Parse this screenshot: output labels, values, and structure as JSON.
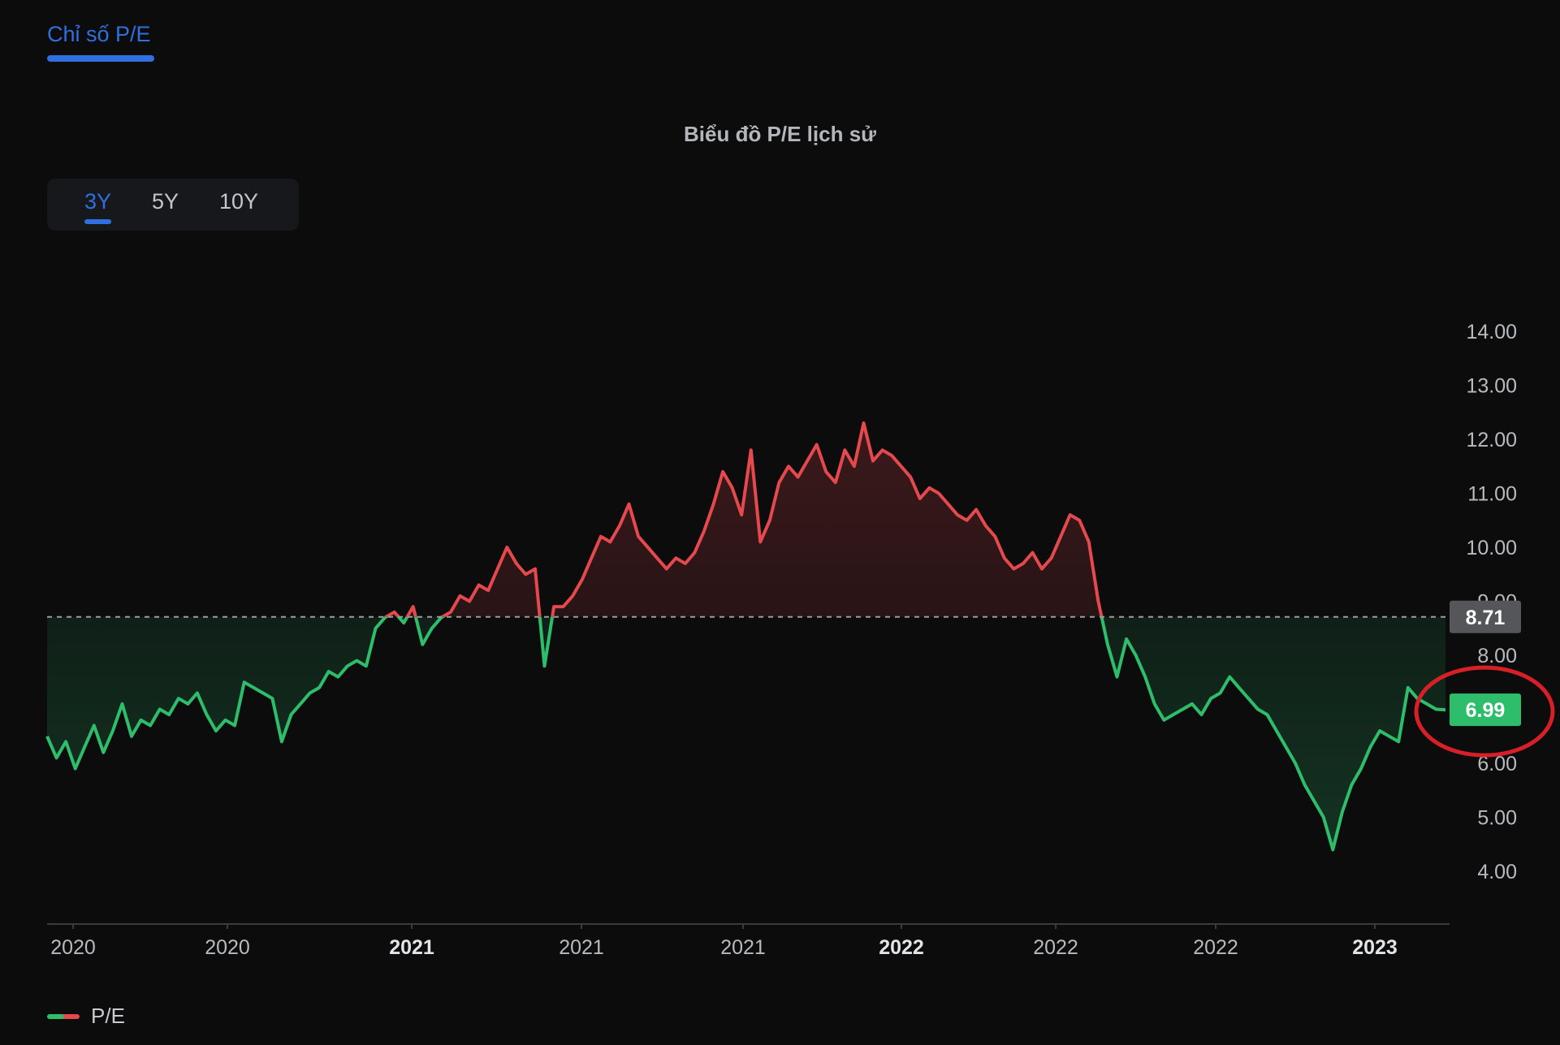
{
  "tabs": {
    "active_label": "Chỉ số P/E"
  },
  "range_buttons": [
    {
      "label": "3Y",
      "active": true
    },
    {
      "label": "5Y",
      "active": false
    },
    {
      "label": "10Y",
      "active": false
    }
  ],
  "colors": {
    "accent": "#2f6fe0",
    "up_series": "#e5484d",
    "down_series": "#2ebd6b",
    "background": "#0c0c0d",
    "reference_line": "#9a9ca2",
    "reference_badge": "#555659",
    "current_badge": "#2ebd6b",
    "highlight_circle": "#d61f26"
  },
  "chart_data": {
    "type": "line",
    "title": "Biểu đồ P/E lịch sử",
    "xlabel": "",
    "ylabel": "",
    "ylim": [
      3.5,
      14.5
    ],
    "y_ticks": [
      "4.00",
      "5.00",
      "6.00",
      "8.00",
      "9.00",
      "10.00",
      "11.00",
      "12.00",
      "13.00",
      "14.00"
    ],
    "x_ticks": [
      {
        "label": "2020",
        "bold": false
      },
      {
        "label": "2020",
        "bold": false
      },
      {
        "label": "2021",
        "bold": true
      },
      {
        "label": "2021",
        "bold": false
      },
      {
        "label": "2021",
        "bold": false
      },
      {
        "label": "2022",
        "bold": true
      },
      {
        "label": "2022",
        "bold": false
      },
      {
        "label": "2022",
        "bold": false
      },
      {
        "label": "2023",
        "bold": true
      }
    ],
    "reference_value": 8.71,
    "reference_label": "8.71",
    "current_value": 6.99,
    "current_label": "6.99",
    "colored_above_reference": "red",
    "colored_below_reference": "green",
    "series": [
      {
        "name": "P/E",
        "values": [
          6.5,
          6.1,
          6.4,
          5.9,
          6.3,
          6.7,
          6.2,
          6.6,
          7.1,
          6.5,
          6.8,
          6.7,
          7.0,
          6.9,
          7.2,
          7.1,
          7.3,
          6.9,
          6.6,
          6.8,
          6.7,
          7.5,
          7.4,
          7.3,
          7.2,
          6.4,
          6.9,
          7.1,
          7.3,
          7.4,
          7.7,
          7.6,
          7.8,
          7.9,
          7.8,
          8.5,
          8.7,
          8.8,
          8.6,
          8.9,
          8.2,
          8.5,
          8.7,
          8.8,
          9.1,
          9.0,
          9.3,
          9.2,
          9.6,
          10.0,
          9.7,
          9.5,
          9.6,
          7.8,
          8.9,
          8.9,
          9.1,
          9.4,
          9.8,
          10.2,
          10.1,
          10.4,
          10.8,
          10.2,
          10.0,
          9.8,
          9.6,
          9.8,
          9.7,
          9.9,
          10.3,
          10.8,
          11.4,
          11.1,
          10.6,
          11.8,
          10.1,
          10.5,
          11.2,
          11.5,
          11.3,
          11.6,
          11.9,
          11.4,
          11.2,
          11.8,
          11.5,
          12.3,
          11.6,
          11.8,
          11.7,
          11.5,
          11.3,
          10.9,
          11.1,
          11.0,
          10.8,
          10.6,
          10.5,
          10.7,
          10.4,
          10.2,
          9.8,
          9.6,
          9.7,
          9.9,
          9.6,
          9.8,
          10.2,
          10.6,
          10.5,
          10.1,
          9.0,
          8.2,
          7.6,
          8.3,
          8.0,
          7.6,
          7.1,
          6.8,
          6.9,
          7.0,
          7.1,
          6.9,
          7.2,
          7.3,
          7.6,
          7.4,
          7.2,
          7.0,
          6.9,
          6.6,
          6.3,
          6.0,
          5.6,
          5.3,
          5.0,
          4.4,
          5.1,
          5.6,
          5.9,
          6.3,
          6.6,
          6.5,
          6.4,
          7.4,
          7.2,
          7.1,
          7.0,
          6.99
        ]
      }
    ]
  },
  "legend": {
    "label": "P/E"
  }
}
